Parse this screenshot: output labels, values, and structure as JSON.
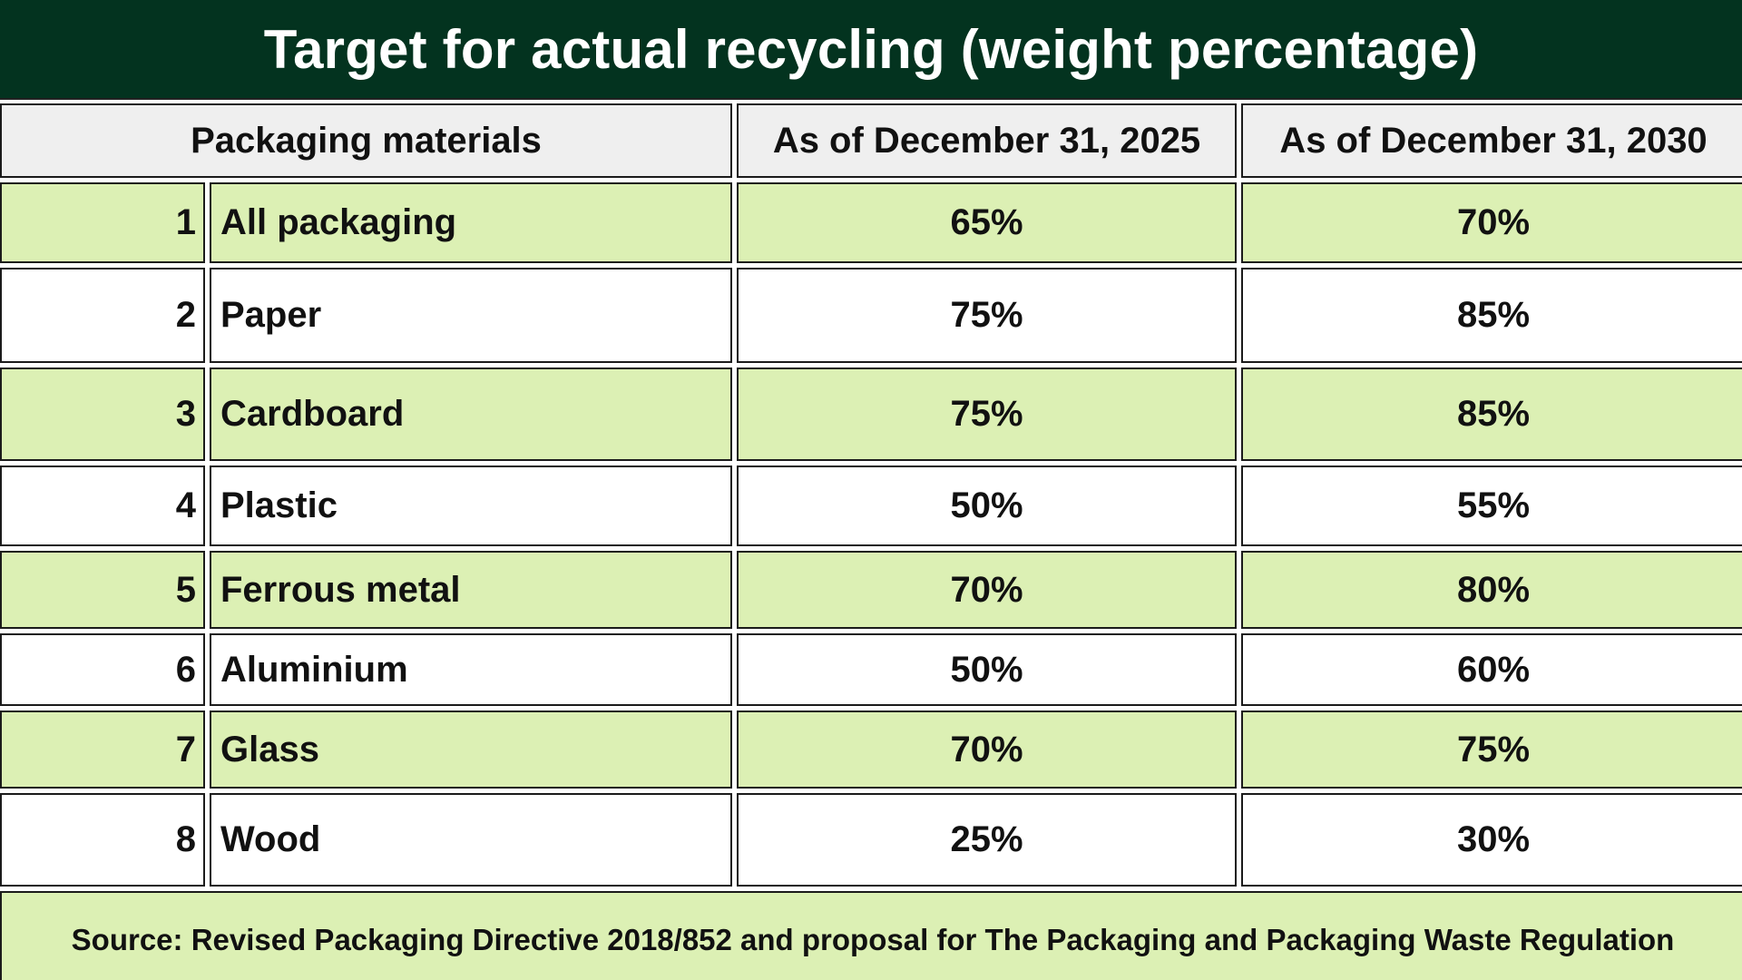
{
  "title": "Target for actual recycling (weight percentage)",
  "table": {
    "headers": {
      "materials": "Packaging materials",
      "col_2025": "As of December 31, 2025",
      "col_2030": "As of December 31, 2030"
    },
    "rows": [
      {
        "num": "1",
        "material": "All packaging",
        "v2025": "65%",
        "v2030": "70%"
      },
      {
        "num": "2",
        "material": "Paper",
        "v2025": "75%",
        "v2030": "85%"
      },
      {
        "num": "3",
        "material": "Cardboard",
        "v2025": "75%",
        "v2030": "85%"
      },
      {
        "num": "4",
        "material": "Plastic",
        "v2025": "50%",
        "v2030": "55%"
      },
      {
        "num": "5",
        "material": "Ferrous metal",
        "v2025": "70%",
        "v2030": "80%"
      },
      {
        "num": "6",
        "material": "Aluminium",
        "v2025": "50%",
        "v2030": "60%"
      },
      {
        "num": "7",
        "material": "Glass",
        "v2025": "70%",
        "v2030": "75%"
      },
      {
        "num": "8",
        "material": "Wood",
        "v2025": "25%",
        "v2030": "30%"
      }
    ]
  },
  "source": "Source: Revised Packaging Directive 2018/852 and proposal for The Packaging and Packaging Waste Regulation",
  "colors": {
    "title_bg": "#03331f",
    "header_bg": "#efefef",
    "row_green": "#dcf0b4",
    "row_white": "#ffffff"
  }
}
